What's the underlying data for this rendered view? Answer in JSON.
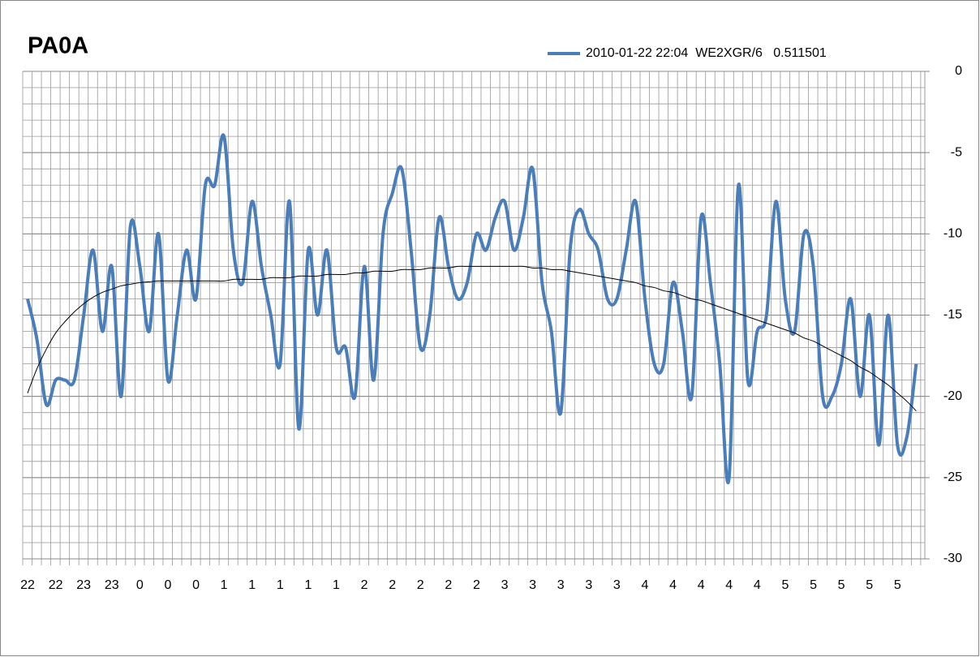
{
  "chart_data": {
    "type": "line",
    "title": "PA0A",
    "categories": [
      "22",
      null,
      null,
      "22",
      null,
      null,
      "23",
      null,
      null,
      "23",
      null,
      null,
      "0",
      null,
      null,
      "0",
      null,
      null,
      "0",
      null,
      null,
      "1",
      null,
      null,
      "1",
      null,
      null,
      "1",
      null,
      null,
      "1",
      null,
      null,
      "1",
      null,
      null,
      "2",
      null,
      null,
      "2",
      null,
      null,
      "2",
      null,
      null,
      "2",
      null,
      null,
      "2",
      null,
      null,
      "3",
      null,
      null,
      "3",
      null,
      null,
      "3",
      null,
      null,
      "3",
      null,
      null,
      "3",
      null,
      null,
      "4",
      null,
      null,
      "4",
      null,
      null,
      "4",
      null,
      null,
      "4",
      null,
      null,
      "4",
      null,
      null,
      "5",
      null,
      null,
      "5",
      null,
      null,
      "5",
      null,
      null,
      "5",
      null,
      null,
      "5",
      null,
      null
    ],
    "series": [
      {
        "name": "2010-01-22 22:04  WE2XGR/6   0.511501",
        "color": "#4a7ebb",
        "values": [
          -14,
          -16.5,
          -20.5,
          -19,
          -19,
          -19,
          -15,
          -11,
          -16,
          -12,
          -20,
          -9.5,
          -12,
          -16,
          -10,
          -19,
          -15,
          -11,
          -14,
          -7,
          -7,
          -4,
          -11,
          -13,
          -8,
          -12,
          -15,
          -18,
          -8,
          -22,
          -11,
          -15,
          -11,
          -17,
          -17,
          -20,
          -12,
          -19,
          -10,
          -7.5,
          -6,
          -11,
          -17,
          -15,
          -9,
          -12,
          -14,
          -13,
          -10,
          -11,
          -9,
          -8,
          -11,
          -9,
          -6,
          -13,
          -16,
          -21,
          -11,
          -8.5,
          -10,
          -11,
          -14,
          -14,
          -11,
          -8,
          -14,
          -18,
          -18,
          -13,
          -16,
          -20,
          -9,
          -13,
          -18,
          -25,
          -7,
          -19,
          -16,
          -15,
          -8,
          -14,
          -16,
          -10,
          -12,
          -20,
          -20,
          -18,
          -14,
          -20,
          -15,
          -23,
          -15,
          -23,
          -22.5,
          -18
        ]
      }
    ],
    "trendline": {
      "color": "#000000",
      "values": [
        -19.8,
        -18.3,
        -17.1,
        -16.1,
        -15.4,
        -14.8,
        -14.3,
        -13.9,
        -13.6,
        -13.4,
        -13.2,
        -13.1,
        -13.0,
        -12.95,
        -12.9,
        -12.9,
        -12.9,
        -12.9,
        -12.9,
        -12.9,
        -12.9,
        -12.9,
        -12.8,
        -12.8,
        -12.8,
        -12.8,
        -12.7,
        -12.7,
        -12.7,
        -12.6,
        -12.6,
        -12.6,
        -12.5,
        -12.5,
        -12.5,
        -12.4,
        -12.4,
        -12.3,
        -12.3,
        -12.3,
        -12.2,
        -12.2,
        -12.2,
        -12.1,
        -12.1,
        -12.1,
        -12.0,
        -12.0,
        -12.0,
        -12.0,
        -12.0,
        -12.0,
        -12.0,
        -12.0,
        -12.1,
        -12.1,
        -12.2,
        -12.2,
        -12.3,
        -12.4,
        -12.5,
        -12.6,
        -12.7,
        -12.8,
        -12.9,
        -13.0,
        -13.2,
        -13.3,
        -13.5,
        -13.6,
        -13.8,
        -14.0,
        -14.1,
        -14.3,
        -14.5,
        -14.7,
        -14.9,
        -15.1,
        -15.3,
        -15.5,
        -15.7,
        -15.9,
        -16.1,
        -16.4,
        -16.6,
        -16.9,
        -17.2,
        -17.5,
        -17.8,
        -18.2,
        -18.5,
        -18.9,
        -19.3,
        -19.8,
        -20.3,
        -20.9
      ]
    },
    "ylim": [
      -30,
      0
    ],
    "yticks": [
      0,
      -5,
      -10,
      -15,
      -20,
      -25,
      -30
    ],
    "grid": true,
    "yaxis_side": "right",
    "legend": "top"
  }
}
